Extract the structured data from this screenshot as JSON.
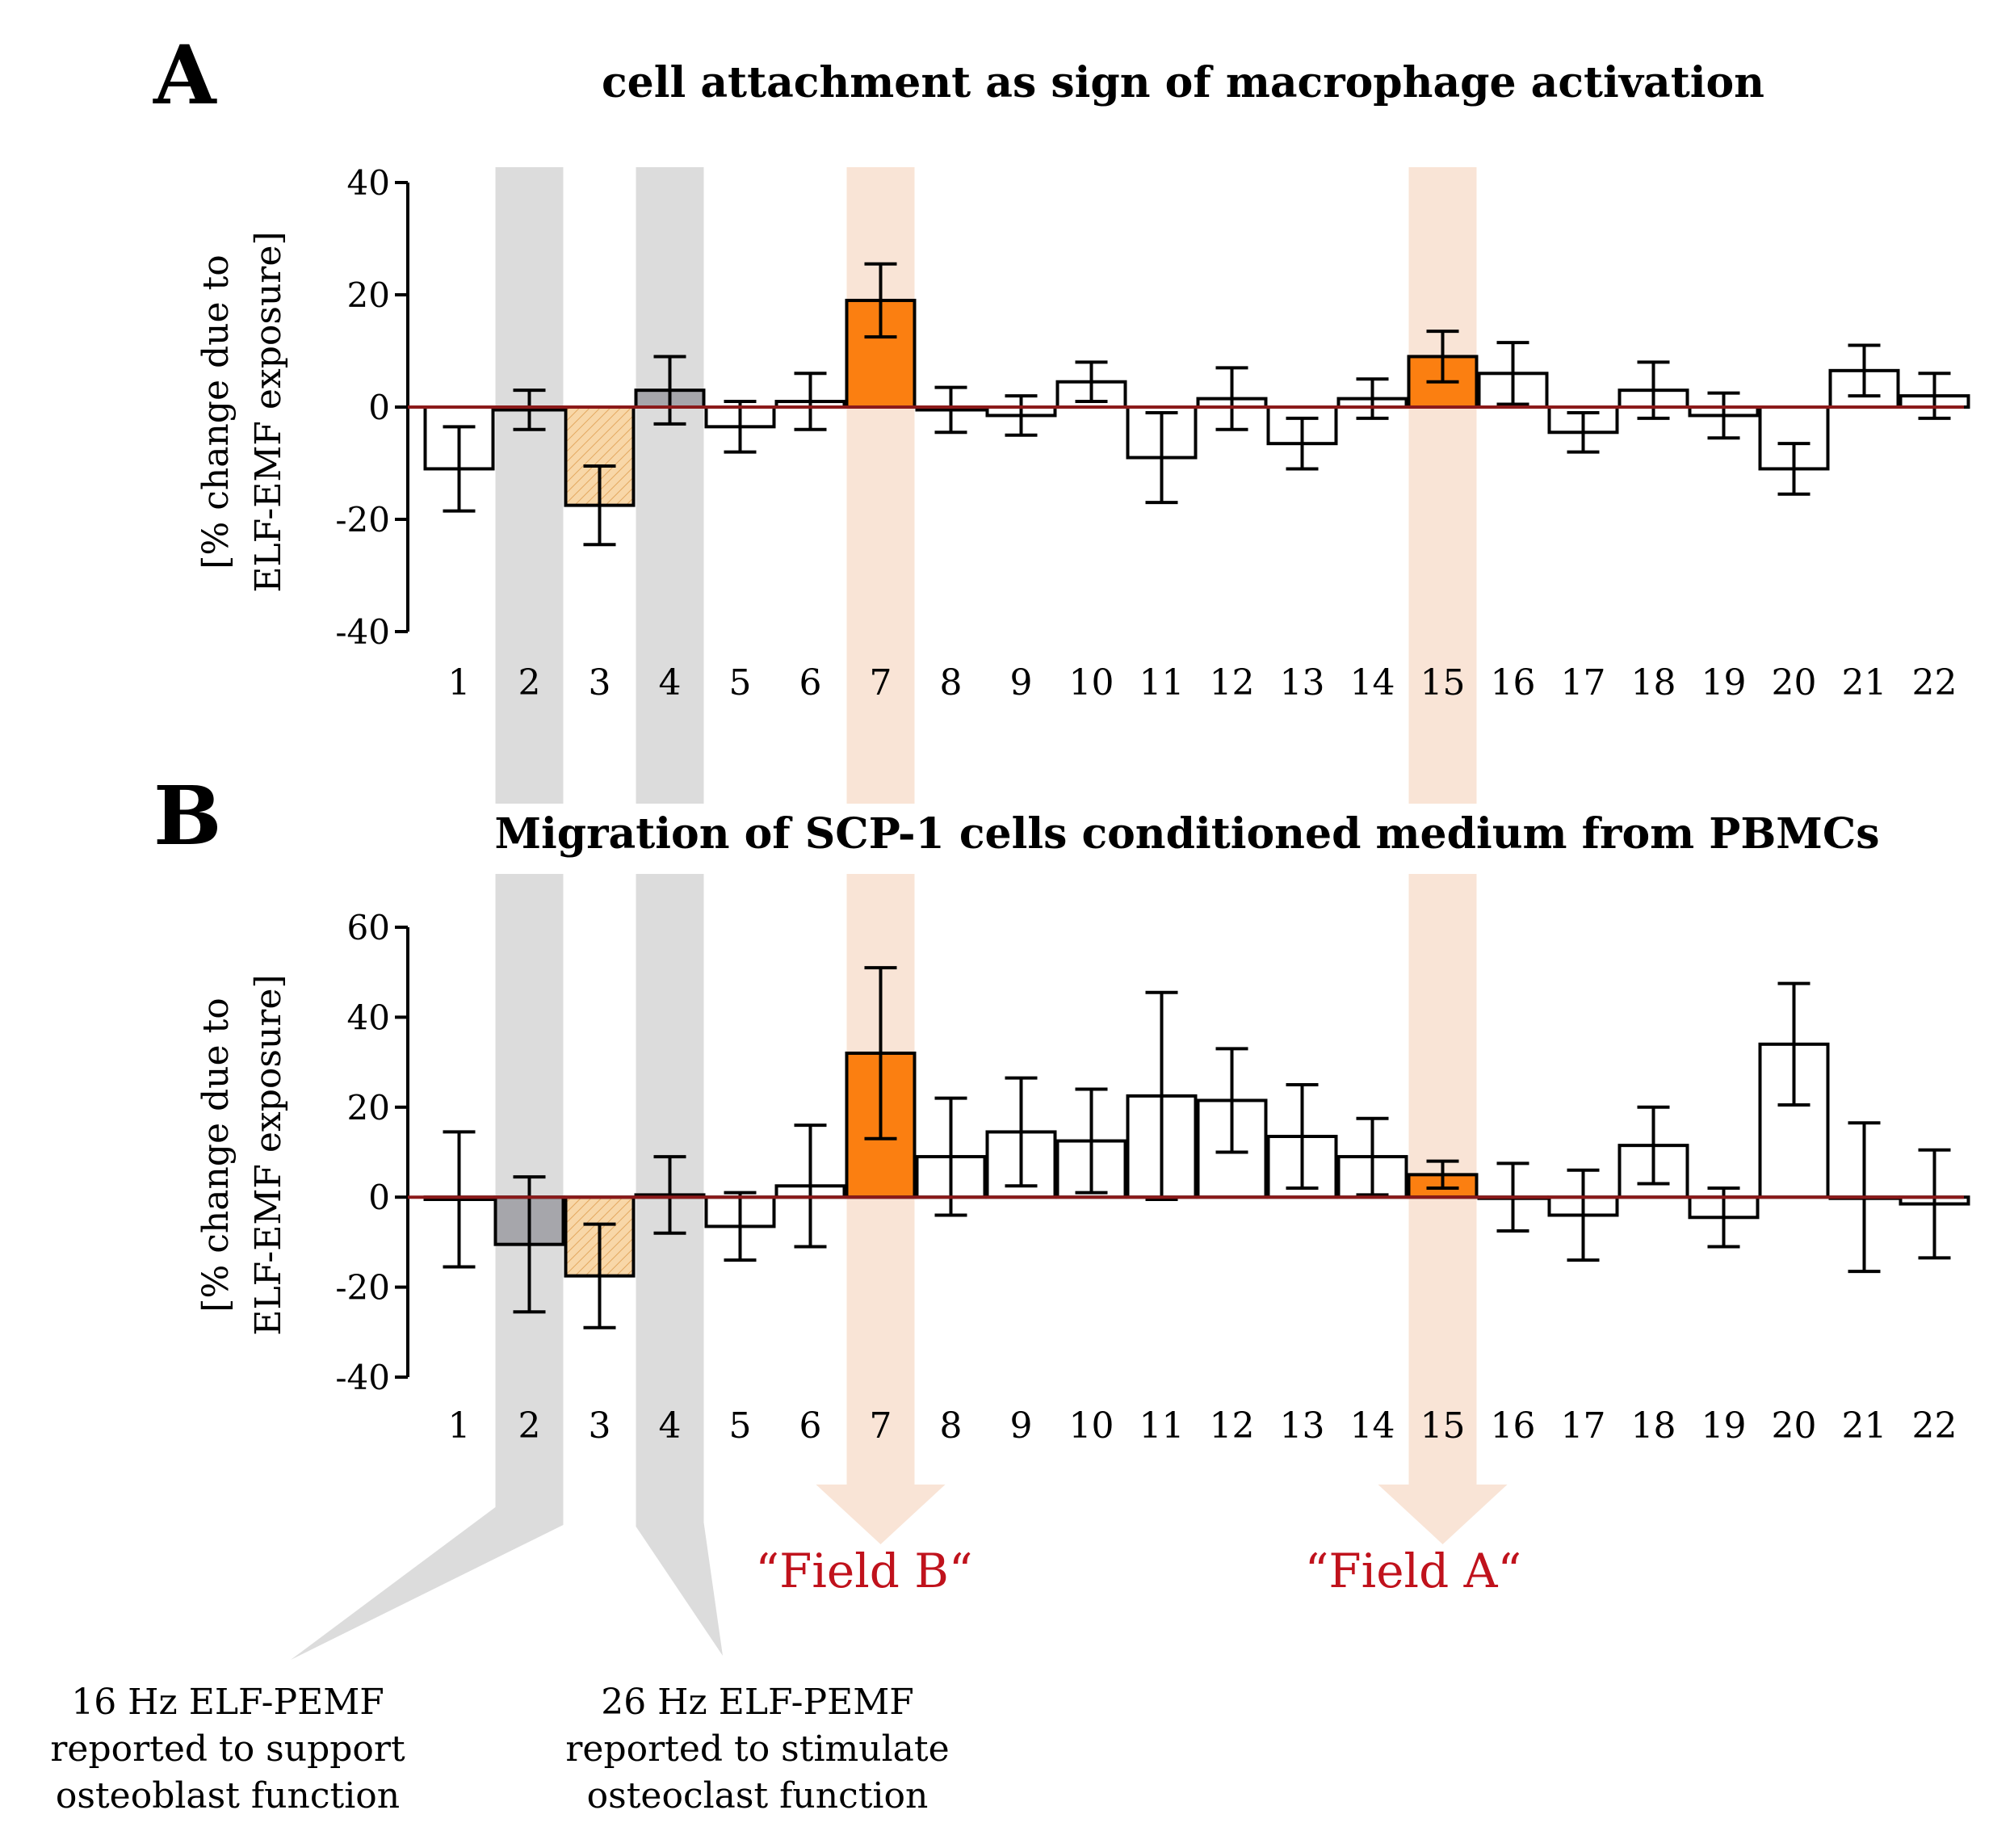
{
  "panels": {
    "A": {
      "letter": "A",
      "title": "cell attachment as sign of macrophage activation"
    },
    "B": {
      "letter": "B",
      "title": "Migration of SCP-1 cells conditioned medium from PBMCs"
    }
  },
  "field_labels": {
    "b": "“Field B“",
    "a": "“Field A“"
  },
  "notes": {
    "n16": [
      "16 Hz ELF-PEMF",
      "reported to support",
      "osteoblast function"
    ],
    "n26": [
      "26 Hz ELF-PEMF",
      "reported to stimulate",
      "osteoclast function"
    ]
  },
  "colors": {
    "axis": "#000000",
    "zero_line": "#8b1a1a",
    "gray_band": "#dcdcdc",
    "orange_band": "#f9e4d6",
    "gray_bar": "#a6a6ab",
    "orange_bar": "#fb7f11",
    "hatch_bar": "#f8d7a8",
    "field_text": "#c0121c"
  },
  "chart_data": [
    {
      "id": "A",
      "type": "bar",
      "title": "cell attachment as sign of macrophage activation",
      "ylabel_lines": [
        "[% change due to",
        "ELF-EMF exposure]"
      ],
      "xlabel": "",
      "ylim": [
        -40,
        40
      ],
      "yticks": [
        40,
        20,
        0,
        -20,
        -40
      ],
      "categories": [
        "1",
        "2",
        "3",
        "4",
        "5",
        "6",
        "7",
        "8",
        "9",
        "10",
        "11",
        "12",
        "13",
        "14",
        "15",
        "16",
        "17",
        "18",
        "19",
        "20",
        "21",
        "22"
      ],
      "values": [
        -11,
        -0.5,
        -17.5,
        3,
        -3.5,
        1,
        19,
        -0.5,
        -1.5,
        4.5,
        -9,
        1.5,
        -6.5,
        1.5,
        9,
        6,
        -4.5,
        3,
        -1.5,
        -11,
        6.5,
        2
      ],
      "errors": [
        7.5,
        3.5,
        7,
        6,
        4.5,
        5,
        6.5,
        4,
        3.5,
        3.5,
        8,
        5.5,
        4.5,
        3.5,
        4.5,
        5.5,
        3.5,
        5,
        4,
        4.5,
        4.5,
        4
      ],
      "styles": [
        "white",
        "gray",
        "hatched",
        "gray",
        "white",
        "white",
        "orange",
        "white",
        "white",
        "white",
        "white",
        "white",
        "white",
        "white",
        "orange",
        "white",
        "white",
        "white",
        "white",
        "white",
        "white",
        "white"
      ]
    },
    {
      "id": "B",
      "type": "bar",
      "title": "Migration of SCP-1 cells conditioned medium from PBMCs",
      "ylabel_lines": [
        "[% change due to",
        "ELF-EMF exposure]"
      ],
      "xlabel": "",
      "ylim": [
        -40,
        60
      ],
      "yticks": [
        60,
        40,
        20,
        0,
        -20,
        -40
      ],
      "categories": [
        "1",
        "2",
        "3",
        "4",
        "5",
        "6",
        "7",
        "8",
        "9",
        "10",
        "11",
        "12",
        "13",
        "14",
        "15",
        "16",
        "17",
        "18",
        "19",
        "20",
        "21",
        "22"
      ],
      "values": [
        -0.5,
        -10.5,
        -17.5,
        0.5,
        -6.5,
        2.5,
        32,
        9,
        14.5,
        12.5,
        22.5,
        21.5,
        13.5,
        9,
        5,
        0,
        -4,
        11.5,
        -4.5,
        34,
        0,
        -1.5
      ],
      "errors": [
        15,
        15,
        11.5,
        8.5,
        7.5,
        13.5,
        19,
        13,
        12,
        11.5,
        23,
        11.5,
        11.5,
        8.5,
        3,
        7.5,
        10,
        8.5,
        6.5,
        13.5,
        16.5,
        12
      ],
      "styles": [
        "white",
        "gray",
        "hatched",
        "white",
        "white",
        "white",
        "orange",
        "white",
        "white",
        "white",
        "white",
        "white",
        "white",
        "white",
        "orange",
        "white",
        "white",
        "white",
        "white",
        "white",
        "white",
        "white"
      ]
    }
  ]
}
